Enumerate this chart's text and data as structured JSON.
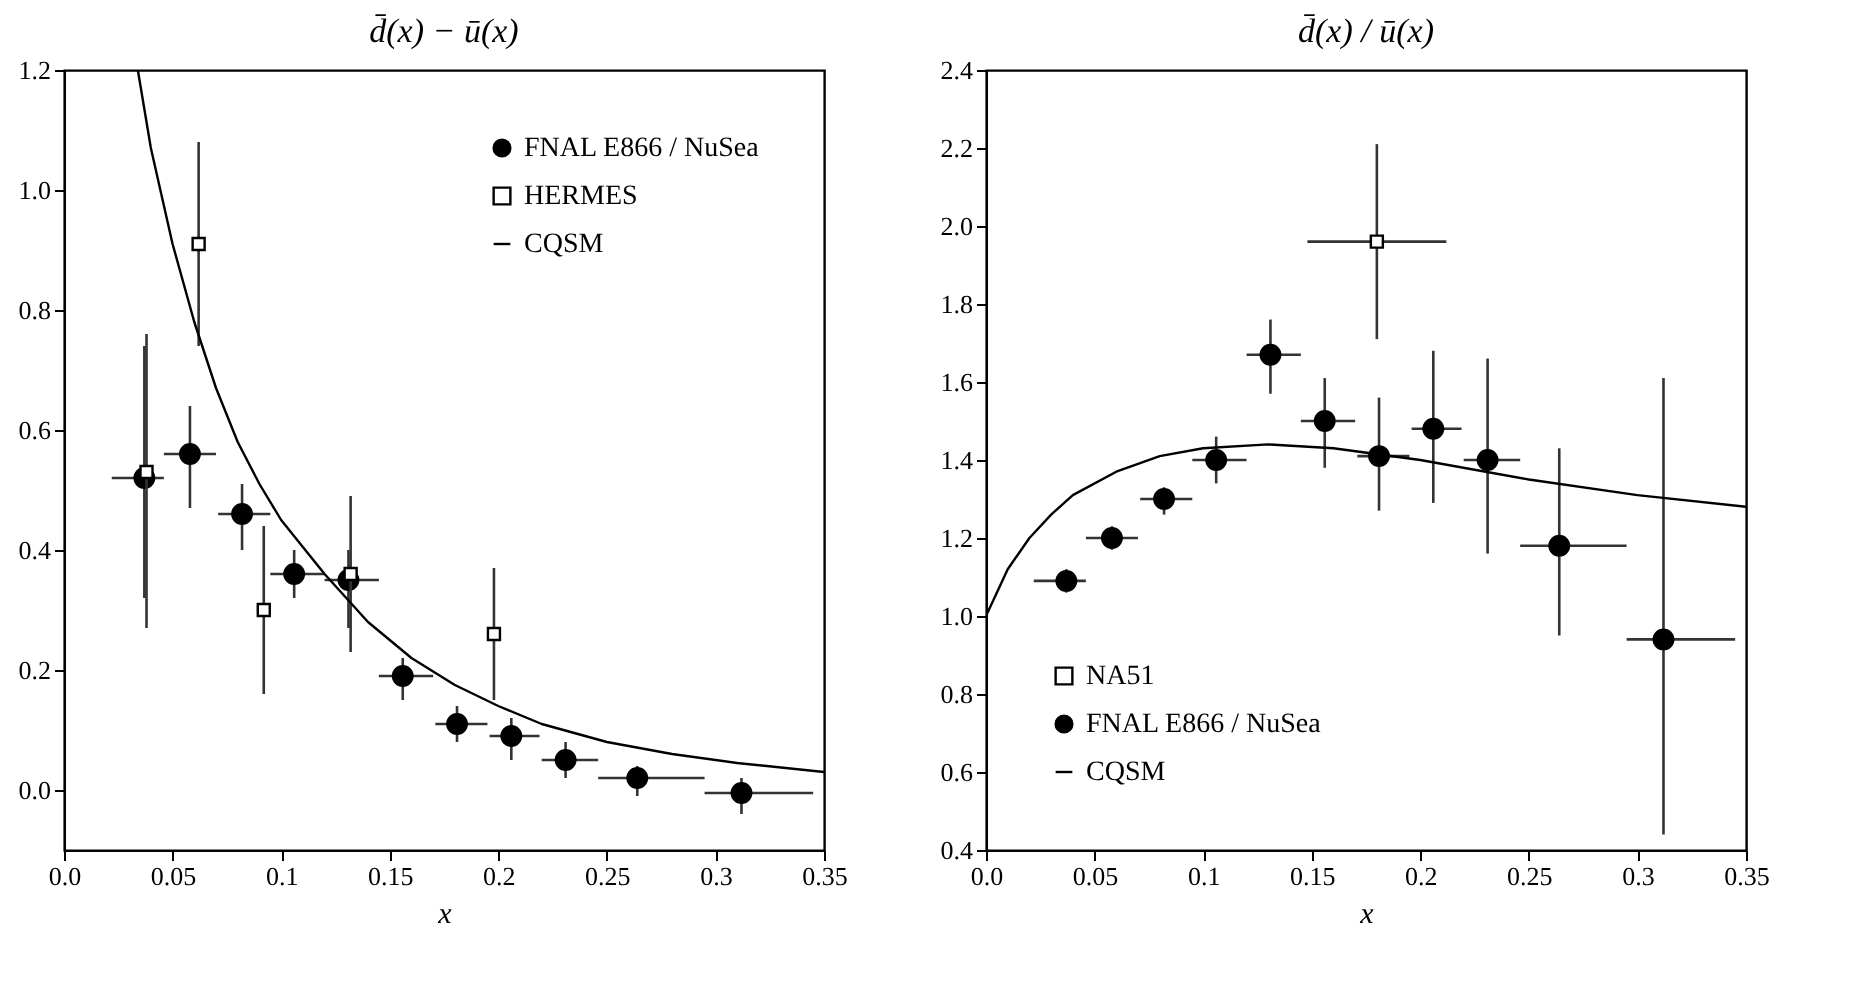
{
  "chart_data": [
    {
      "type": "scatter",
      "title": "d̄(x) − ū(x)",
      "xlabel": "x",
      "legend": "top right",
      "xlim": [
        0,
        0.35
      ],
      "xticks": [
        {
          "value": 0,
          "label": "0.0"
        },
        0.05,
        0.1,
        0.15,
        0.2,
        0.25,
        0.3,
        0.35
      ],
      "ylim": [
        -0.1,
        1.2
      ],
      "yticks": [
        {
          "value": 0,
          "label": "0.0"
        },
        0.2,
        0.4,
        0.6,
        0.8,
        {
          "value": 1,
          "label": "1.0"
        },
        1.2
      ],
      "series": [
        {
          "name": "FNAL E866 / NuSea",
          "type": "scatter",
          "marker": "circle",
          "color": "#000000",
          "x": [
            0.037,
            0.058,
            0.082,
            0.106,
            0.131,
            0.156,
            0.181,
            0.206,
            0.231,
            0.264,
            0.312
          ],
          "values": [
            0.52,
            0.56,
            0.46,
            0.36,
            0.35,
            0.19,
            0.11,
            0.09,
            0.05,
            0.02,
            -0.005
          ],
          "errors": [
            [
              0.32,
              0.74
            ],
            [
              0.47,
              0.64
            ],
            [
              0.4,
              0.51
            ],
            [
              0.32,
              0.4
            ],
            [
              0.27,
              0.4
            ],
            [
              0.15,
              0.22
            ],
            [
              0.08,
              0.14
            ],
            [
              0.05,
              0.12
            ],
            [
              0.02,
              0.08
            ],
            [
              -0.01,
              0.04
            ],
            [
              -0.04,
              0.02
            ]
          ],
          "xerrors": [
            [
              0.022,
              0.046
            ],
            [
              0.046,
              0.07
            ],
            [
              0.071,
              0.095
            ],
            [
              0.095,
              0.12
            ],
            [
              0.12,
              0.145
            ],
            [
              0.145,
              0.17
            ],
            [
              0.171,
              0.195
            ],
            [
              0.196,
              0.219
            ],
            [
              0.22,
              0.246
            ],
            [
              0.246,
              0.295
            ],
            [
              0.295,
              0.345
            ]
          ]
        },
        {
          "name": "HERMES",
          "type": "scatter",
          "marker": "square",
          "color": "#000000",
          "x": [
            0.038,
            0.062,
            0.092,
            0.132,
            0.198
          ],
          "values": [
            0.53,
            0.91,
            0.3,
            0.36,
            0.26
          ],
          "errors": [
            [
              0.27,
              0.76
            ],
            [
              0.74,
              1.08
            ],
            [
              0.16,
              0.44
            ],
            [
              0.23,
              0.49
            ],
            [
              0.15,
              0.37
            ]
          ]
        },
        {
          "name": "CQSM",
          "type": "line",
          "marker": "none",
          "color": "#000000",
          "x": [
            0.034,
            0.04,
            0.05,
            0.06,
            0.07,
            0.08,
            0.09,
            0.1,
            0.12,
            0.14,
            0.16,
            0.18,
            0.2,
            0.22,
            0.25,
            0.28,
            0.31,
            0.35
          ],
          "values": [
            1.2,
            1.07,
            0.91,
            0.78,
            0.67,
            0.58,
            0.51,
            0.45,
            0.36,
            0.28,
            0.22,
            0.175,
            0.14,
            0.11,
            0.08,
            0.06,
            0.045,
            0.03
          ]
        }
      ]
    },
    {
      "type": "scatter",
      "title": "d̄(x) / ū(x)",
      "xlabel": "x",
      "legend": "bottom left",
      "xlim": [
        0,
        0.35
      ],
      "xticks": [
        {
          "value": 0,
          "label": "0.0"
        },
        0.05,
        0.1,
        0.15,
        0.2,
        0.25,
        0.3,
        0.35
      ],
      "ylim": [
        0.4,
        2.4
      ],
      "yticks": [
        0.4,
        0.6,
        0.8,
        {
          "value": 1,
          "label": "1.0"
        },
        1.2,
        1.4,
        1.6,
        1.8,
        {
          "value": 2,
          "label": "2.0"
        },
        2.2,
        2.4
      ],
      "series": [
        {
          "name": "NA51",
          "type": "scatter",
          "marker": "square",
          "color": "#000000",
          "x": [
            0.18
          ],
          "values": [
            1.96
          ],
          "errors": [
            [
              1.71,
              2.21
            ]
          ],
          "xerrors": [
            [
              0.148,
              0.212
            ]
          ]
        },
        {
          "name": "FNAL E866 / NuSea",
          "type": "scatter",
          "marker": "circle",
          "color": "#000000",
          "x": [
            0.037,
            0.058,
            0.082,
            0.106,
            0.131,
            0.156,
            0.181,
            0.206,
            0.231,
            0.264,
            0.312
          ],
          "values": [
            1.09,
            1.2,
            1.3,
            1.4,
            1.67,
            1.5,
            1.41,
            1.48,
            1.4,
            1.18,
            0.94
          ],
          "errors": [
            [
              1.06,
              1.12
            ],
            [
              1.17,
              1.23
            ],
            [
              1.26,
              1.33
            ],
            [
              1.34,
              1.46
            ],
            [
              1.57,
              1.76
            ],
            [
              1.38,
              1.61
            ],
            [
              1.27,
              1.56
            ],
            [
              1.29,
              1.68
            ],
            [
              1.16,
              1.66
            ],
            [
              0.95,
              1.43
            ],
            [
              0.44,
              1.61
            ]
          ],
          "xerrors": [
            [
              0.022,
              0.046
            ],
            [
              0.046,
              0.07
            ],
            [
              0.071,
              0.095
            ],
            [
              0.095,
              0.12
            ],
            [
              0.12,
              0.145
            ],
            [
              0.145,
              0.17
            ],
            [
              0.171,
              0.195
            ],
            [
              0.196,
              0.219
            ],
            [
              0.22,
              0.246
            ],
            [
              0.246,
              0.295
            ],
            [
              0.295,
              0.345
            ]
          ]
        },
        {
          "name": "CQSM",
          "type": "line",
          "marker": "none",
          "color": "#000000",
          "x": [
            0,
            0.01,
            0.02,
            0.03,
            0.04,
            0.06,
            0.08,
            0.1,
            0.13,
            0.16,
            0.2,
            0.25,
            0.3,
            0.35
          ],
          "values": [
            1.0,
            1.12,
            1.2,
            1.26,
            1.31,
            1.37,
            1.41,
            1.43,
            1.44,
            1.43,
            1.4,
            1.35,
            1.31,
            1.28
          ]
        }
      ]
    }
  ]
}
